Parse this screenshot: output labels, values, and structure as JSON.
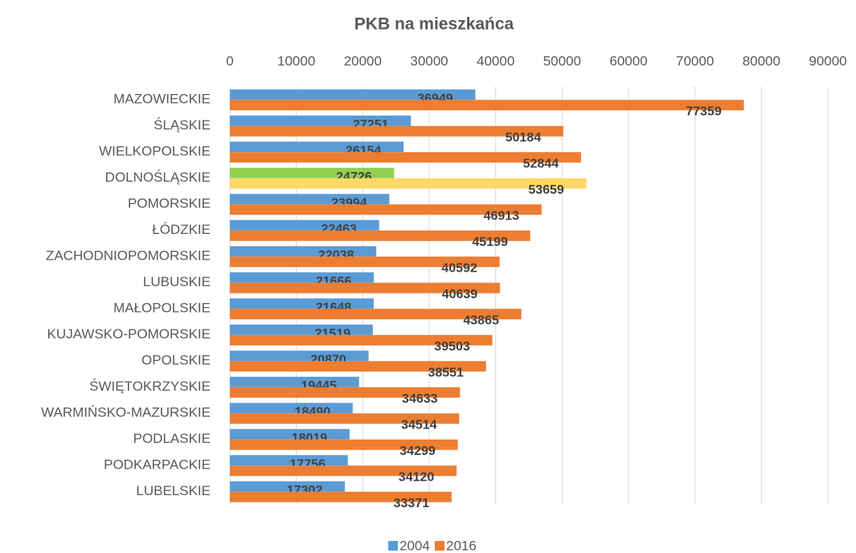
{
  "chart_data": {
    "type": "barh",
    "title": "PKB na mieszkańca",
    "categories": [
      "MAZOWIECKIE",
      "ŚLĄSKIE",
      "WIELKOPOLSKIE",
      "DOLNOŚLĄSKIE",
      "POMORSKIE",
      "ŁÓDZKIE",
      "ZACHODNIOPOMORSKIE",
      "LUBUSKIE",
      "MAŁOPOLSKIE",
      "KUJAWSKO-POMORSKIE",
      "OPOLSKIE",
      "ŚWIĘTOKRZYSKIE",
      "WARMIŃSKO-MAZURSKIE",
      "PODLASKIE",
      "PODKARPACKIE",
      "LUBELSKIE"
    ],
    "series": [
      {
        "name": "2004",
        "color": "#5b9bd5",
        "colors": [
          "#5b9bd5",
          "#5b9bd5",
          "#5b9bd5",
          "#92d050",
          "#5b9bd5",
          "#5b9bd5",
          "#5b9bd5",
          "#5b9bd5",
          "#5b9bd5",
          "#5b9bd5",
          "#5b9bd5",
          "#5b9bd5",
          "#5b9bd5",
          "#5b9bd5",
          "#5b9bd5",
          "#5b9bd5"
        ],
        "values": [
          36949,
          27251,
          26154,
          24726,
          23994,
          22463,
          22038,
          21666,
          21648,
          21519,
          20870,
          19445,
          18490,
          18019,
          17756,
          17302
        ]
      },
      {
        "name": "2016",
        "color": "#ed7d31",
        "colors": [
          "#ed7d31",
          "#ed7d31",
          "#ed7d31",
          "#ffd966",
          "#ed7d31",
          "#ed7d31",
          "#ed7d31",
          "#ed7d31",
          "#ed7d31",
          "#ed7d31",
          "#ed7d31",
          "#ed7d31",
          "#ed7d31",
          "#ed7d31",
          "#ed7d31",
          "#ed7d31"
        ],
        "values": [
          77359,
          50184,
          52844,
          53659,
          46913,
          45199,
          40592,
          40639,
          43865,
          39503,
          38551,
          34633,
          34514,
          34299,
          34120,
          33371
        ]
      }
    ],
    "xlim": [
      0,
      90000
    ],
    "xticks": [
      0,
      10000,
      20000,
      30000,
      40000,
      50000,
      60000,
      70000,
      80000,
      90000
    ],
    "grid": true,
    "legend": "bottom"
  }
}
